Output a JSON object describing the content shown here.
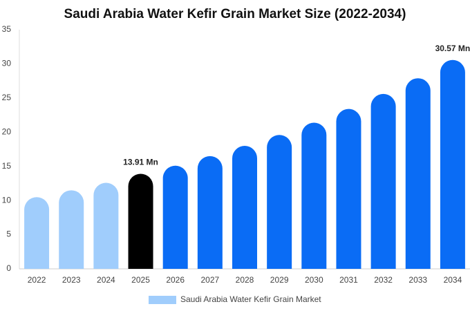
{
  "chart_data": {
    "type": "bar",
    "title": "Saudi Arabia Water Kefir Grain Market Size (2022-2034)",
    "categories": [
      "2022",
      "2023",
      "2024",
      "2025",
      "2026",
      "2027",
      "2028",
      "2029",
      "2030",
      "2031",
      "2032",
      "2033",
      "2034"
    ],
    "series": [
      {
        "name": "Saudi Arabia Water Kefir Grain Market",
        "color": "#a0cdfc",
        "values": [
          10.5,
          11.5,
          12.6,
          13.91,
          15.1,
          16.5,
          18.0,
          19.6,
          21.4,
          23.4,
          25.6,
          27.9,
          30.57
        ],
        "value_labels": [
          null,
          null,
          null,
          "13.91 Mn",
          null,
          null,
          null,
          null,
          null,
          null,
          null,
          null,
          "30.57 Mn"
        ],
        "colors": [
          "#a0cdfc",
          "#a0cdfc",
          "#a0cdfc",
          "#000000",
          "#0a6cf5",
          "#0a6cf5",
          "#0a6cf5",
          "#0a6cf5",
          "#0a6cf5",
          "#0a6cf5",
          "#0a6cf5",
          "#0a6cf5",
          "#0a6cf5"
        ]
      }
    ],
    "ylim": [
      0,
      35
    ],
    "yticks": [
      0,
      5,
      10,
      15,
      20,
      25,
      30,
      35
    ],
    "grid": false
  }
}
